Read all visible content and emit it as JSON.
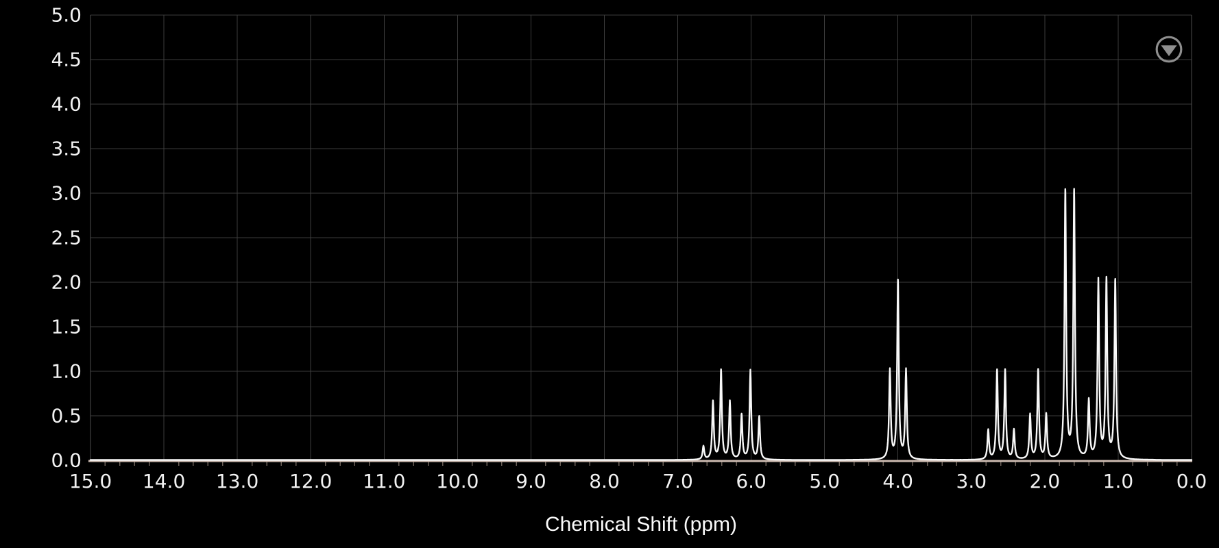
{
  "chart_data": {
    "type": "line",
    "subtype": "nmr-1h-spectrum",
    "title": "",
    "xlabel": "Chemical Shift (ppm)",
    "ylabel": "",
    "x_axis": {
      "min": 0,
      "max": 15,
      "inverted": true,
      "major_tick_step": 1.0,
      "minor_tick_step": 0.2,
      "tick_labels": [
        "15.0",
        "14.0",
        "13.0",
        "12.0",
        "11.0",
        "10.0",
        "9.0",
        "8.0",
        "7.0",
        "6.0",
        "5.0",
        "4.0",
        "3.0",
        "2.0",
        "1.0",
        "0.0"
      ]
    },
    "y_axis": {
      "min": 0,
      "max": 5,
      "major_tick_step": 0.5,
      "tick_labels": [
        "5.0",
        "4.5",
        "4.0",
        "3.5",
        "3.0",
        "2.5",
        "2.0",
        "1.5",
        "1.0",
        "0.5",
        "0.0"
      ]
    },
    "grid": true,
    "legend_position": "none",
    "peaks": [
      {
        "ppm": 6.65,
        "intensity": 0.15
      },
      {
        "ppm": 6.52,
        "intensity": 0.65
      },
      {
        "ppm": 6.41,
        "intensity": 1.0
      },
      {
        "ppm": 6.29,
        "intensity": 0.65
      },
      {
        "ppm": 6.13,
        "intensity": 0.5
      },
      {
        "ppm": 6.01,
        "intensity": 1.0
      },
      {
        "ppm": 5.89,
        "intensity": 0.48
      },
      {
        "ppm": 4.11,
        "intensity": 1.0
      },
      {
        "ppm": 4.0,
        "intensity": 2.0
      },
      {
        "ppm": 3.89,
        "intensity": 1.0
      },
      {
        "ppm": 2.77,
        "intensity": 0.33
      },
      {
        "ppm": 2.65,
        "intensity": 1.0
      },
      {
        "ppm": 2.54,
        "intensity": 1.0
      },
      {
        "ppm": 2.42,
        "intensity": 0.33
      },
      {
        "ppm": 2.2,
        "intensity": 0.5
      },
      {
        "ppm": 2.09,
        "intensity": 1.0
      },
      {
        "ppm": 1.98,
        "intensity": 0.5
      },
      {
        "ppm": 1.72,
        "intensity": 3.0
      },
      {
        "ppm": 1.6,
        "intensity": 3.0
      },
      {
        "ppm": 1.4,
        "intensity": 0.65
      },
      {
        "ppm": 1.27,
        "intensity": 2.0
      },
      {
        "ppm": 1.16,
        "intensity": 2.0
      },
      {
        "ppm": 1.04,
        "intensity": 2.0
      }
    ],
    "colors": {
      "background": "#000000",
      "grid": "#3d3d3d",
      "plot_border": "#4d4d4d",
      "x_axis_line": "#cdbbb1",
      "minor_tick": "#6b6058",
      "trace": "#f8f8f8",
      "tick_text": "#f2f2f2",
      "title_text": "#fafafa",
      "icon": "#8f8f8f"
    }
  },
  "controls": {
    "collapse_button": {
      "icon": "chevron-down-in-circle"
    }
  }
}
